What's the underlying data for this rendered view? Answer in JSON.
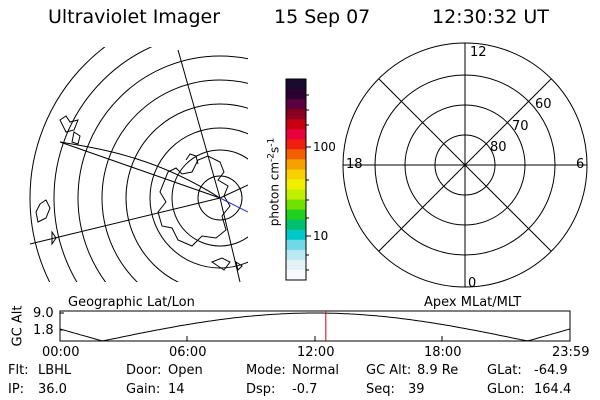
{
  "header": {
    "instrument": "Ultraviolet Imager",
    "date": "15 Sep 07",
    "time": "12:30:32 UT"
  },
  "left_panel": {
    "label": "Geographic Lat/Lon"
  },
  "right_panel": {
    "label": "Apex MLat/MLT",
    "mlt_labels": {
      "top": "12",
      "left": "18",
      "right": "6",
      "bottom": "0"
    },
    "lat_labels": [
      "60",
      "70",
      "80"
    ]
  },
  "colorbar": {
    "unit": "photon cm",
    "unit_sup1": "-2",
    "unit_mid": "s",
    "unit_sup2": "-1",
    "ticks": [
      "100",
      "10"
    ],
    "colors": [
      "#1a0a2e",
      "#2a0030",
      "#5a0040",
      "#8a0020",
      "#c80010",
      "#e8003a",
      "#f02010",
      "#f26000",
      "#f8a000",
      "#f8d000",
      "#f0f000",
      "#c0f000",
      "#70e000",
      "#20d020",
      "#00c070",
      "#00c8c8",
      "#70d8e8",
      "#b8e8f0",
      "#e4f2f6",
      "#f6fafc"
    ]
  },
  "timeline": {
    "ylabel": "GC Alt",
    "yticks": [
      "9.0",
      "1.8"
    ],
    "xticks": [
      "00:00",
      "06:00",
      "12:00",
      "18:00",
      "23:59"
    ],
    "current_time_hours": 12.51
  },
  "footer": {
    "flt_label": "Flt:",
    "flt_value": "LBHL",
    "ip_label": "IP:",
    "ip_value": "36.0",
    "door_label": "Door:",
    "door_value": "Open",
    "gain_label": "Gain:",
    "gain_value": "14",
    "mode_label": "Mode:",
    "mode_value": "Normal",
    "dsp_label": "Dsp:",
    "dsp_value": "-0.7",
    "gcalt_label": "GC Alt:",
    "gcalt_value": "8.9 Re",
    "seq_label": "Seq:",
    "seq_value": "39",
    "glat_label": "GLat:",
    "glat_value": "-64.9",
    "glon_label": "GLon:",
    "glon_value": "164.4"
  },
  "colors": {
    "time_marker": "#e00000",
    "track_line": "#3030c0"
  }
}
